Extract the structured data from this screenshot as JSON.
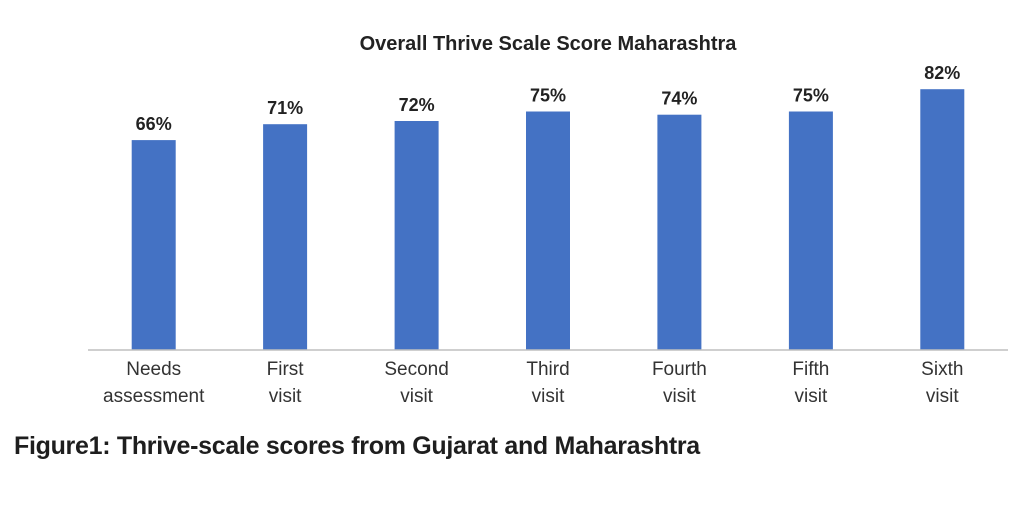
{
  "chart_data": {
    "type": "bar",
    "title": "Overall Thrive Scale Score Maharashtra",
    "categories": [
      [
        "Needs",
        "assessment"
      ],
      [
        "First",
        "visit"
      ],
      [
        "Second",
        "visit"
      ],
      [
        "Third",
        "visit"
      ],
      [
        "Fourth",
        "visit"
      ],
      [
        "Fifth",
        "visit"
      ],
      [
        "Sixth",
        "visit"
      ]
    ],
    "values": [
      66,
      71,
      72,
      75,
      74,
      75,
      82
    ],
    "data_labels": [
      "66%",
      "71%",
      "72%",
      "75%",
      "74%",
      "75%",
      "82%"
    ],
    "xlabel": "",
    "ylabel": "",
    "ylim": [
      0,
      100
    ],
    "grid": false,
    "bar_color": "#4472C4",
    "axis_color": "#bfbfbf"
  },
  "caption": "Figure1: Thrive-scale scores from Gujarat and Maharashtra"
}
